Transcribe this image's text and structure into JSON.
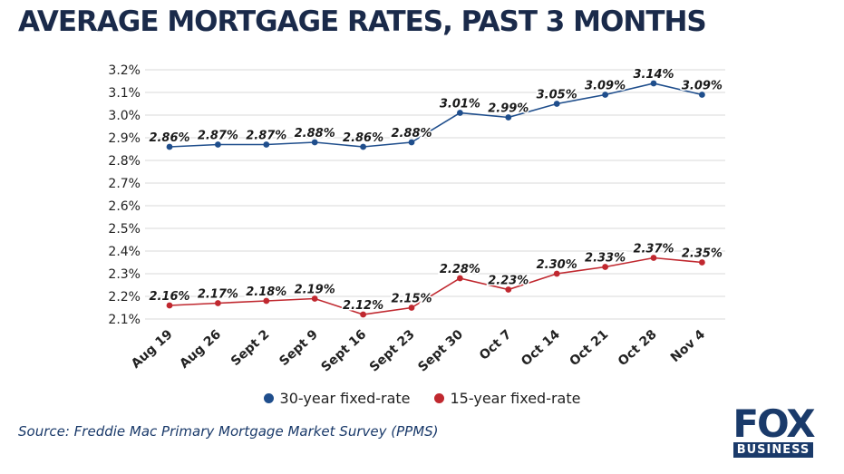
{
  "title": "AVERAGE MORTGAGE RATES, PAST 3 MONTHS",
  "source": "Source: Freddie Mac Primary Mortgage Market Survey (PPMS)",
  "logo": {
    "main": "FOX",
    "sub": "BUSINESS"
  },
  "chart_data": {
    "type": "line",
    "categories": [
      "Aug 19",
      "Aug 26",
      "Sept 2",
      "Sept 9",
      "Sept 16",
      "Sept 23",
      "Sept 30",
      "Oct 7",
      "Oct 14",
      "Oct 21",
      "Oct 28",
      "Nov 4"
    ],
    "series": [
      {
        "name": "30-year fixed-rate",
        "color": "#1f4e8c",
        "values": [
          2.86,
          2.87,
          2.87,
          2.88,
          2.86,
          2.88,
          3.01,
          2.99,
          3.05,
          3.09,
          3.14,
          3.09
        ],
        "labels": [
          "2.86%",
          "2.87%",
          "2.87%",
          "2.88%",
          "2.86%",
          "2.88%",
          "3.01%",
          "2.99%",
          "3.05%",
          "3.09%",
          "3.14%",
          "3.09%"
        ]
      },
      {
        "name": "15-year fixed-rate",
        "color": "#c0282f",
        "values": [
          2.16,
          2.17,
          2.18,
          2.19,
          2.12,
          2.15,
          2.28,
          2.23,
          2.3,
          2.33,
          2.37,
          2.35
        ],
        "labels": [
          "2.16%",
          "2.17%",
          "2.18%",
          "2.19%",
          "2.12%",
          "2.15%",
          "2.28%",
          "2.23%",
          "2.30%",
          "2.33%",
          "2.37%",
          "2.35%"
        ]
      }
    ],
    "yticks": [
      "3.2%",
      "3.1%",
      "3.0%",
      "2.9%",
      "2.8%",
      "2.7%",
      "2.6%",
      "2.5%",
      "2.4%",
      "2.3%",
      "2.2%",
      "2.1%"
    ],
    "ylim": [
      2.1,
      3.2
    ],
    "grid": true,
    "legend_position": "bottom"
  }
}
